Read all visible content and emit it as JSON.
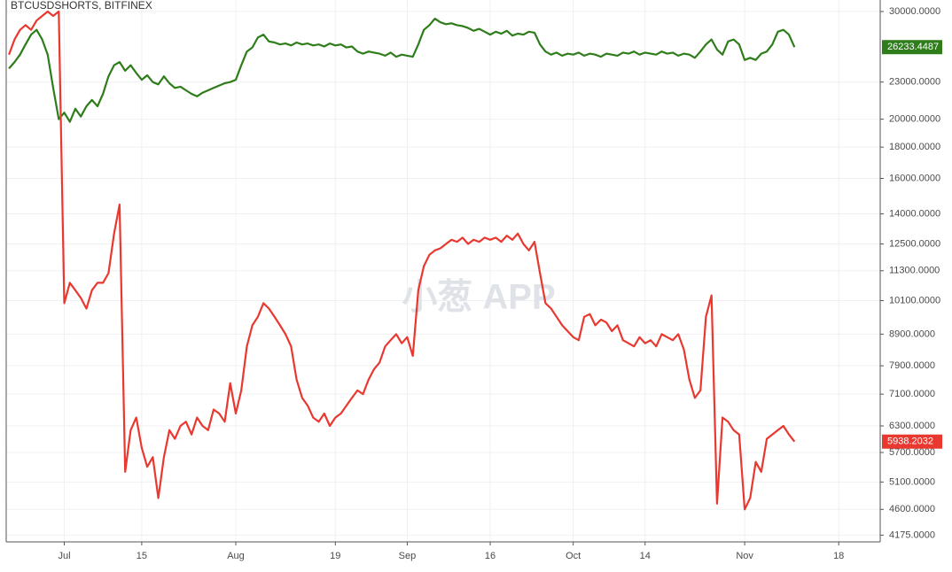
{
  "chart_data": {
    "type": "line",
    "title": "BTCUSDSHORTS, BITFINEX",
    "watermark": "小葱 APP",
    "log_scale": true,
    "grid": true,
    "categories": [
      null,
      null,
      null,
      null,
      null,
      null,
      null,
      null,
      null,
      null,
      "Jul",
      null,
      null,
      null,
      null,
      null,
      null,
      null,
      null,
      null,
      null,
      null,
      null,
      null,
      "15",
      null,
      null,
      null,
      null,
      null,
      null,
      null,
      null,
      null,
      null,
      null,
      null,
      null,
      null,
      null,
      null,
      "Aug",
      null,
      null,
      null,
      null,
      null,
      null,
      null,
      null,
      null,
      null,
      null,
      null,
      null,
      null,
      null,
      null,
      null,
      "19",
      null,
      null,
      null,
      null,
      null,
      null,
      null,
      null,
      null,
      null,
      null,
      null,
      "Sep",
      null,
      null,
      null,
      null,
      null,
      null,
      null,
      null,
      null,
      null,
      null,
      null,
      null,
      null,
      "16",
      null,
      null,
      null,
      null,
      null,
      null,
      null,
      null,
      null,
      null,
      null,
      null,
      null,
      null,
      "Oct",
      null,
      null,
      null,
      null,
      null,
      null,
      null,
      null,
      null,
      null,
      null,
      null,
      "14",
      null,
      null,
      null,
      null,
      null,
      null,
      null,
      null,
      null,
      null,
      null,
      null,
      null,
      null,
      null,
      null,
      null,
      "Nov",
      null,
      null,
      null,
      null,
      null,
      null,
      null,
      null,
      null,
      null,
      null,
      null,
      null,
      null,
      null,
      null,
      "18",
      null,
      null,
      null,
      null,
      null,
      null,
      null
    ],
    "series": [
      {
        "color": "#2e7d1a",
        "values": [
          24200,
          24800,
          25500,
          26500,
          27500,
          28000,
          27000,
          25500,
          22500,
          20000,
          20500,
          19800,
          20800,
          20200,
          21000,
          21500,
          21000,
          22000,
          23500,
          24500,
          24800,
          24000,
          24500,
          23800,
          23200,
          23600,
          23000,
          22800,
          23500,
          22900,
          22500,
          22600,
          22300,
          22000,
          21800,
          22100,
          22300,
          22500,
          22700,
          22900,
          23000,
          23200,
          24500,
          25800,
          26200,
          27200,
          27500,
          26800,
          26700,
          26500,
          26600,
          26400,
          26700,
          26500,
          26600,
          26400,
          26500,
          26300,
          26600,
          26400,
          26500,
          26200,
          26300,
          25800,
          25600,
          25800,
          25700,
          25600,
          25400,
          25700,
          25300,
          25500,
          25400,
          25300,
          26500,
          28000,
          28500,
          29200,
          28800,
          28600,
          28700,
          28500,
          28400,
          28200,
          27900,
          28100,
          27800,
          27500,
          27800,
          27600,
          27900,
          27400,
          27600,
          27500,
          27800,
          27700,
          26500,
          25800,
          25500,
          25700,
          25400,
          25600,
          25500,
          25700,
          25400,
          25600,
          25500,
          25300,
          25600,
          25500,
          25400,
          25700,
          25600,
          25800,
          25500,
          25700,
          25600,
          25500,
          25800,
          25600,
          25700,
          25400,
          25600,
          25500,
          25200,
          25800,
          26500,
          27000,
          26000,
          25500,
          26800,
          27000,
          26500,
          25000,
          25200,
          25000,
          25600,
          25800,
          26500,
          27800,
          28000,
          27500,
          26233.4487,
          null,
          null,
          null,
          null,
          null,
          null,
          null,
          null,
          null,
          null,
          null,
          null,
          null,
          null,
          null
        ]
      },
      {
        "color": "#e8382f",
        "values": [
          25500,
          27000,
          28000,
          28500,
          28000,
          29000,
          29500,
          30000,
          29500,
          30000,
          10000,
          10800,
          10500,
          10200,
          9800,
          10500,
          10800,
          10800,
          11200,
          13000,
          14500,
          5300,
          6200,
          6500,
          5800,
          5400,
          5600,
          4800,
          5600,
          6200,
          6000,
          6300,
          6400,
          6100,
          6500,
          6300,
          6200,
          6700,
          6600,
          6400,
          7400,
          6600,
          7200,
          8500,
          9200,
          9500,
          10000,
          9800,
          9500,
          9200,
          8900,
          8500,
          7500,
          7000,
          6800,
          6500,
          6400,
          6600,
          6300,
          6500,
          6600,
          6800,
          7000,
          7200,
          7100,
          7500,
          7800,
          8000,
          8500,
          8700,
          8900,
          8600,
          8800,
          8200,
          10500,
          11500,
          12000,
          12200,
          12300,
          12500,
          12700,
          12600,
          12800,
          12500,
          12700,
          12600,
          12800,
          12700,
          12800,
          12600,
          12900,
          12700,
          13000,
          12500,
          12200,
          12600,
          11200,
          10000,
          9800,
          9500,
          9200,
          9000,
          8800,
          8700,
          9500,
          9600,
          9200,
          9400,
          9300,
          9000,
          9200,
          8700,
          8600,
          8500,
          8800,
          8600,
          8700,
          8500,
          8900,
          8800,
          8700,
          8900,
          8400,
          7500,
          7000,
          7200,
          9500,
          10300,
          4700,
          6500,
          6400,
          6200,
          6100,
          4600,
          4800,
          5500,
          5300,
          6000,
          6100,
          6200,
          6300,
          6100,
          5938.2032,
          null,
          null,
          null,
          null,
          null,
          null,
          null,
          null,
          null,
          null,
          null,
          null,
          null,
          null,
          null
        ]
      }
    ],
    "ylim": [
      4070,
      31330
    ],
    "yticks": [
      {
        "value": 30000,
        "label": "30000.0000"
      },
      {
        "value": 23000,
        "label": "23000.0000"
      },
      {
        "value": 20000,
        "label": "20000.0000"
      },
      {
        "value": 18000,
        "label": "18000.0000"
      },
      {
        "value": 16000,
        "label": "16000.0000"
      },
      {
        "value": 14000,
        "label": "14000.0000"
      },
      {
        "value": 12500,
        "label": "12500.0000"
      },
      {
        "value": 11300,
        "label": "11300.0000"
      },
      {
        "value": 10100,
        "label": "10100.0000"
      },
      {
        "value": 8900,
        "label": "8900.0000"
      },
      {
        "value": 7900,
        "label": "7900.0000"
      },
      {
        "value": 7100,
        "label": "7100.0000"
      },
      {
        "value": 6300,
        "label": "6300.0000"
      },
      {
        "value": 5700,
        "label": "5700.0000"
      },
      {
        "value": 5100,
        "label": "5100.0000"
      },
      {
        "value": 4600,
        "label": "4600.0000"
      },
      {
        "value": 4175,
        "label": "4175.0000"
      }
    ]
  }
}
